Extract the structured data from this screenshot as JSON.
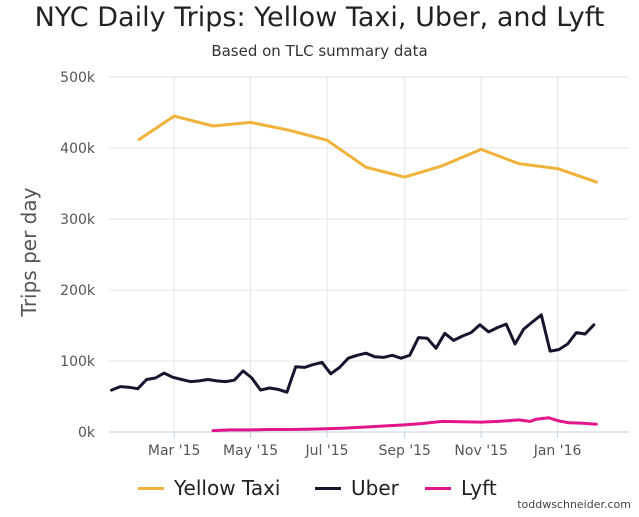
{
  "chart_data": {
    "type": "line",
    "title": "NYC Daily Trips: Yellow Taxi, Uber, and Lyft",
    "subtitle": "Based on TLC summary data",
    "xlabel": "",
    "ylabel": "Trips per day",
    "ylim": [
      0,
      500000
    ],
    "ytick_values": [
      0,
      100000,
      200000,
      300000,
      400000,
      500000
    ],
    "ytick_labels": [
      "0k",
      "100k",
      "200k",
      "300k",
      "400k",
      "500k"
    ],
    "xlim": [
      "2015-01-08",
      "2016-02-27"
    ],
    "xtick_dates": [
      "2015-03-01",
      "2015-05-01",
      "2015-07-01",
      "2015-09-01",
      "2015-11-01",
      "2016-01-01"
    ],
    "xtick_labels": [
      "Mar '15",
      "May '15",
      "Jul '15",
      "Sep '15",
      "Nov '15",
      "Jan '16"
    ],
    "legend_position": "bottom",
    "series": [
      {
        "name": "Yellow Taxi",
        "color": "#f0b23a",
        "points": [
          [
            "2015-02-01",
            412000
          ],
          [
            "2015-03-01",
            445000
          ],
          [
            "2015-04-01",
            431000
          ],
          [
            "2015-05-01",
            436000
          ],
          [
            "2015-06-01",
            425000
          ],
          [
            "2015-07-01",
            411000
          ],
          [
            "2015-08-01",
            373000
          ],
          [
            "2015-09-01",
            359000
          ],
          [
            "2015-10-01",
            375000
          ],
          [
            "2015-11-01",
            398000
          ],
          [
            "2015-12-01",
            378000
          ],
          [
            "2016-01-01",
            371000
          ],
          [
            "2016-02-01",
            352000
          ]
        ]
      },
      {
        "name": "Uber",
        "color": "#16152e",
        "points": [
          [
            "2015-01-10",
            59000
          ],
          [
            "2015-01-17",
            64000
          ],
          [
            "2015-01-24",
            63000
          ],
          [
            "2015-01-31",
            61000
          ],
          [
            "2015-02-07",
            74000
          ],
          [
            "2015-02-14",
            76000
          ],
          [
            "2015-02-21",
            83000
          ],
          [
            "2015-02-28",
            77000
          ],
          [
            "2015-03-07",
            74000
          ],
          [
            "2015-03-14",
            71000
          ],
          [
            "2015-03-21",
            72000
          ],
          [
            "2015-03-28",
            74000
          ],
          [
            "2015-04-04",
            72000
          ],
          [
            "2015-04-11",
            71000
          ],
          [
            "2015-04-18",
            73000
          ],
          [
            "2015-04-25",
            86000
          ],
          [
            "2015-05-02",
            76000
          ],
          [
            "2015-05-09",
            59000
          ],
          [
            "2015-05-16",
            62000
          ],
          [
            "2015-05-23",
            60000
          ],
          [
            "2015-05-30",
            56000
          ],
          [
            "2015-06-06",
            92000
          ],
          [
            "2015-06-13",
            91000
          ],
          [
            "2015-06-20",
            95000
          ],
          [
            "2015-06-27",
            98000
          ],
          [
            "2015-07-04",
            82000
          ],
          [
            "2015-07-11",
            91000
          ],
          [
            "2015-07-18",
            104000
          ],
          [
            "2015-07-25",
            108000
          ],
          [
            "2015-08-01",
            111000
          ],
          [
            "2015-08-08",
            106000
          ],
          [
            "2015-08-15",
            105000
          ],
          [
            "2015-08-22",
            108000
          ],
          [
            "2015-08-29",
            104000
          ],
          [
            "2015-09-05",
            108000
          ],
          [
            "2015-09-12",
            133000
          ],
          [
            "2015-09-19",
            132000
          ],
          [
            "2015-09-26",
            118000
          ],
          [
            "2015-10-03",
            139000
          ],
          [
            "2015-10-10",
            129000
          ],
          [
            "2015-10-17",
            135000
          ],
          [
            "2015-10-24",
            140000
          ],
          [
            "2015-10-31",
            151000
          ],
          [
            "2015-11-07",
            141000
          ],
          [
            "2015-11-14",
            147000
          ],
          [
            "2015-11-21",
            152000
          ],
          [
            "2015-11-28",
            124000
          ],
          [
            "2015-12-05",
            145000
          ],
          [
            "2015-12-12",
            155000
          ],
          [
            "2015-12-19",
            165000
          ],
          [
            "2015-12-26",
            114000
          ],
          [
            "2016-01-02",
            116000
          ],
          [
            "2016-01-09",
            124000
          ],
          [
            "2016-01-16",
            140000
          ],
          [
            "2016-01-23",
            138000
          ],
          [
            "2016-01-30",
            151000
          ]
        ]
      },
      {
        "name": "Lyft",
        "color": "#e2168a",
        "points": [
          [
            "2015-04-01",
            2000
          ],
          [
            "2015-04-15",
            3000
          ],
          [
            "2015-05-01",
            3000
          ],
          [
            "2015-05-15",
            3500
          ],
          [
            "2015-06-01",
            3500
          ],
          [
            "2015-06-15",
            4000
          ],
          [
            "2015-07-01",
            4500
          ],
          [
            "2015-07-15",
            5500
          ],
          [
            "2015-08-01",
            7000
          ],
          [
            "2015-08-15",
            8500
          ],
          [
            "2015-09-01",
            10000
          ],
          [
            "2015-09-15",
            12000
          ],
          [
            "2015-10-01",
            15000
          ],
          [
            "2015-10-15",
            14500
          ],
          [
            "2015-11-01",
            14000
          ],
          [
            "2015-11-15",
            15000
          ],
          [
            "2015-12-01",
            17000
          ],
          [
            "2015-12-10",
            15000
          ],
          [
            "2015-12-15",
            18000
          ],
          [
            "2015-12-25",
            20000
          ],
          [
            "2016-01-01",
            16000
          ],
          [
            "2016-01-10",
            13000
          ],
          [
            "2016-01-20",
            12500
          ],
          [
            "2016-02-01",
            11000
          ]
        ]
      }
    ]
  },
  "credit": "toddwschneider.com"
}
